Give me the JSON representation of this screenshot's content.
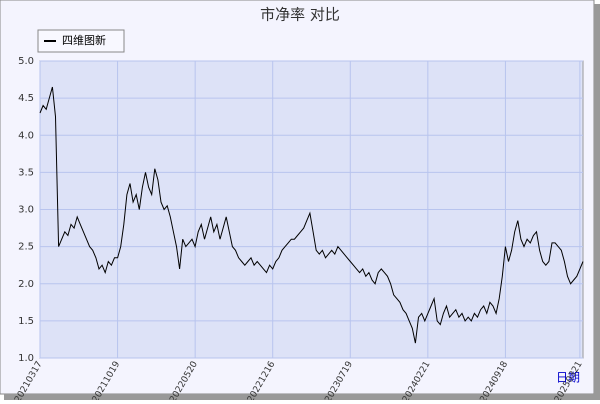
{
  "chart_data": {
    "type": "line",
    "title": "市净率  对比",
    "x_label": "日期",
    "categories": [
      "20210317",
      null,
      null,
      null,
      null,
      null,
      null,
      null,
      null,
      null,
      null,
      null,
      null,
      null,
      null,
      null,
      null,
      null,
      null,
      null,
      null,
      null,
      null,
      null,
      null,
      "20211019",
      null,
      null,
      null,
      null,
      null,
      null,
      null,
      null,
      null,
      null,
      null,
      null,
      null,
      null,
      null,
      null,
      null,
      null,
      null,
      null,
      null,
      null,
      null,
      null,
      "20220520",
      null,
      null,
      null,
      null,
      null,
      null,
      null,
      null,
      null,
      null,
      null,
      null,
      null,
      null,
      null,
      null,
      null,
      null,
      null,
      null,
      null,
      null,
      null,
      null,
      "20221216",
      null,
      null,
      null,
      null,
      null,
      null,
      null,
      null,
      null,
      null,
      null,
      null,
      null,
      null,
      null,
      null,
      null,
      null,
      null,
      null,
      null,
      null,
      null,
      null,
      "20230719",
      null,
      null,
      null,
      null,
      null,
      null,
      null,
      null,
      null,
      null,
      null,
      null,
      null,
      null,
      null,
      null,
      null,
      null,
      null,
      null,
      null,
      null,
      null,
      null,
      "20240221",
      null,
      null,
      null,
      null,
      null,
      null,
      null,
      null,
      null,
      null,
      null,
      null,
      null,
      null,
      null,
      null,
      null,
      null,
      null,
      null,
      null,
      null,
      null,
      null,
      "20240918",
      null,
      null,
      null,
      null,
      null,
      null,
      null,
      null,
      null,
      null,
      null,
      null,
      null,
      null,
      null,
      null,
      null,
      null,
      null,
      null,
      null,
      null,
      null,
      "20250321",
      null
    ],
    "series": [
      {
        "name": "四维图新",
        "color": "#000000",
        "values": [
          4.3,
          4.4,
          4.35,
          4.5,
          4.65,
          4.25,
          2.5,
          2.6,
          2.7,
          2.65,
          2.8,
          2.75,
          2.9,
          2.8,
          2.7,
          2.6,
          2.5,
          2.45,
          2.35,
          2.2,
          2.25,
          2.15,
          2.3,
          2.25,
          2.35,
          2.35,
          2.5,
          2.8,
          3.2,
          3.35,
          3.1,
          3.2,
          3.0,
          3.3,
          3.5,
          3.3,
          3.2,
          3.55,
          3.4,
          3.1,
          3.0,
          3.05,
          2.9,
          2.7,
          2.5,
          2.2,
          2.6,
          2.5,
          2.55,
          2.6,
          2.5,
          2.7,
          2.8,
          2.6,
          2.75,
          2.9,
          2.7,
          2.8,
          2.6,
          2.75,
          2.9,
          2.7,
          2.5,
          2.45,
          2.35,
          2.3,
          2.25,
          2.3,
          2.35,
          2.25,
          2.3,
          2.25,
          2.2,
          2.15,
          2.25,
          2.2,
          2.3,
          2.35,
          2.45,
          2.5,
          2.55,
          2.6,
          2.6,
          2.65,
          2.7,
          2.75,
          2.85,
          2.95,
          2.7,
          2.45,
          2.4,
          2.45,
          2.35,
          2.4,
          2.45,
          2.4,
          2.5,
          2.45,
          2.4,
          2.35,
          2.3,
          2.25,
          2.2,
          2.15,
          2.2,
          2.1,
          2.15,
          2.05,
          2.0,
          2.15,
          2.2,
          2.15,
          2.1,
          2.0,
          1.85,
          1.8,
          1.75,
          1.65,
          1.6,
          1.5,
          1.4,
          1.2,
          1.55,
          1.6,
          1.5,
          1.6,
          1.7,
          1.8,
          1.5,
          1.45,
          1.6,
          1.7,
          1.55,
          1.6,
          1.65,
          1.55,
          1.6,
          1.5,
          1.55,
          1.5,
          1.6,
          1.55,
          1.65,
          1.7,
          1.6,
          1.75,
          1.7,
          1.6,
          1.8,
          2.1,
          2.5,
          2.3,
          2.45,
          2.7,
          2.85,
          2.6,
          2.5,
          2.6,
          2.55,
          2.65,
          2.7,
          2.45,
          2.3,
          2.25,
          2.3,
          2.55,
          2.55,
          2.5,
          2.45,
          2.3,
          2.1,
          2.0,
          2.05,
          2.1,
          2.2,
          2.3
        ]
      }
    ],
    "ylim": [
      1,
      5
    ],
    "yticks": [
      {
        "value": 1,
        "label": "1.0"
      },
      1.5,
      {
        "value": 2,
        "label": "2.0"
      },
      2.5,
      {
        "value": 3,
        "label": "3.0"
      },
      3.5,
      {
        "value": 4,
        "label": "4.0"
      },
      4.5,
      {
        "value": 5,
        "label": "5.0"
      }
    ],
    "grid": true,
    "legend": "top-left"
  }
}
